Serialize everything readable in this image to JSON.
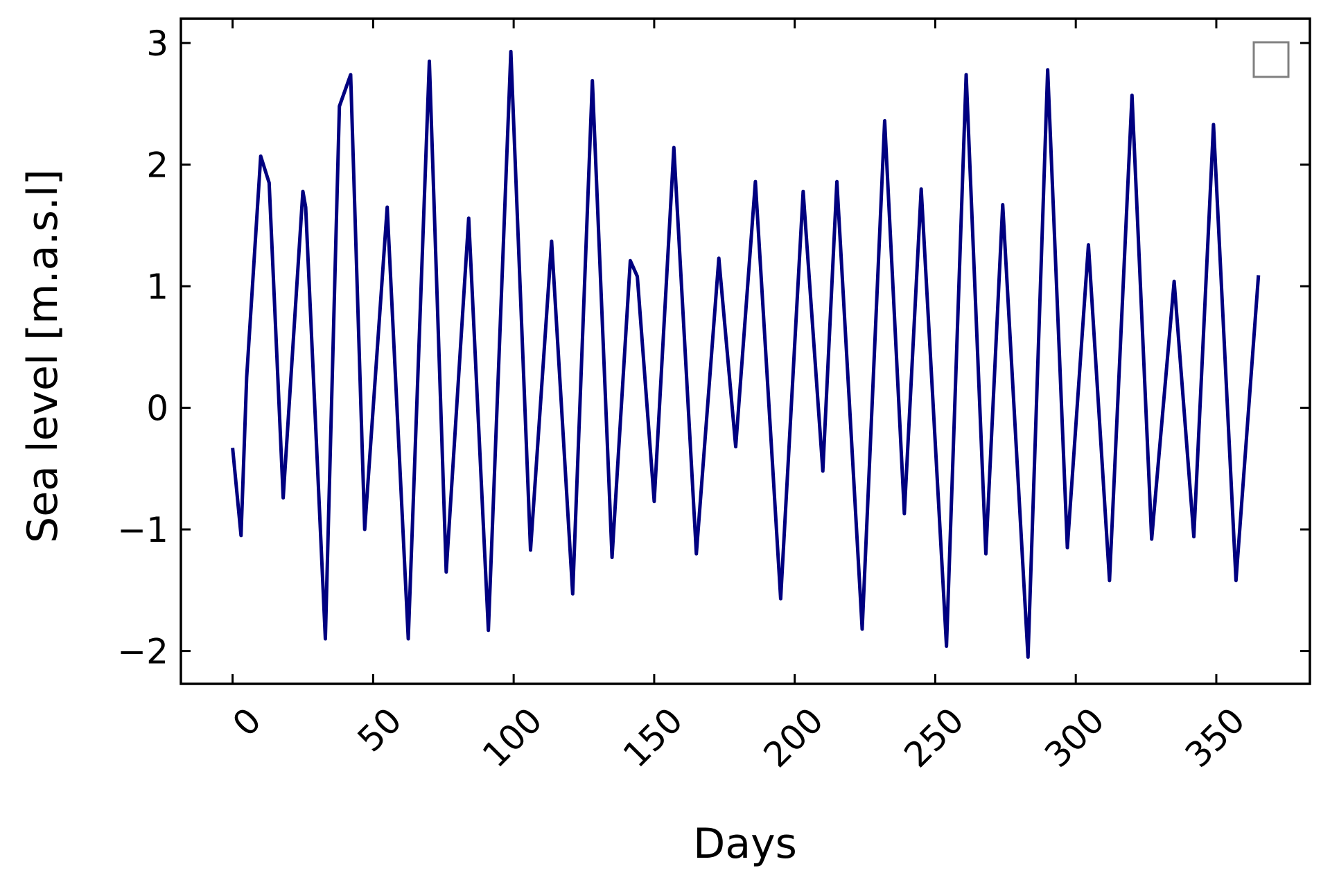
{
  "chart_data": {
    "type": "line",
    "x_label": "Days",
    "y_label": "Sea level [m.a.s.l]",
    "x": [
      0,
      3,
      5,
      10,
      13,
      18,
      25,
      26,
      33,
      38,
      42,
      47,
      55,
      62.5,
      70,
      76,
      84,
      91,
      99,
      106,
      113.5,
      121,
      128,
      135,
      141.5,
      144,
      150,
      157,
      165,
      173,
      179,
      186,
      195,
      203,
      210,
      215,
      224,
      232,
      239,
      245,
      254,
      261,
      268,
      274,
      283,
      290,
      297,
      304.5,
      312,
      320,
      327,
      335,
      342,
      349,
      357,
      365
    ],
    "values": [
      -0.33,
      -1.05,
      0.25,
      2.07,
      1.85,
      -0.74,
      1.78,
      1.65,
      -1.9,
      2.48,
      2.74,
      -1.0,
      1.65,
      -1.9,
      2.85,
      -1.35,
      1.56,
      -1.83,
      2.93,
      -1.17,
      1.37,
      -1.53,
      2.69,
      -1.23,
      1.21,
      1.08,
      -0.77,
      2.14,
      -1.2,
      1.23,
      -0.32,
      1.86,
      -1.57,
      1.78,
      -0.52,
      1.86,
      -1.82,
      2.36,
      -0.87,
      1.8,
      -1.96,
      2.74,
      -1.2,
      1.67,
      -2.05,
      2.78,
      -1.15,
      1.34,
      -1.42,
      2.57,
      -1.08,
      1.04,
      -1.06,
      2.33,
      -1.42,
      1.09
    ],
    "color": "#000080",
    "xlim": [
      -18.4,
      383.3
    ],
    "ylim": [
      -2.27,
      3.2
    ],
    "xticks": [
      0,
      50,
      100,
      150,
      200,
      250,
      300,
      350
    ],
    "yticks": [
      {
        "value": -2,
        "label": "−2"
      },
      {
        "value": -1,
        "label": "−1"
      },
      0,
      1,
      2,
      3
    ],
    "legend": "upper right"
  }
}
